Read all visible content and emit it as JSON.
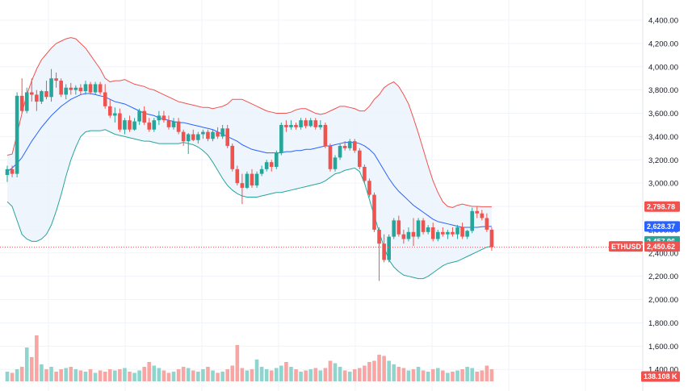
{
  "chart_data": {
    "type": "candlestick",
    "symbol": "ETHUSDT",
    "ylim": [
      1300,
      4500
    ],
    "yticks": [
      "4,400.00",
      "4,200.00",
      "4,000.00",
      "3,800.00",
      "3,600.00",
      "3,400.00",
      "3,200.00",
      "3,000.00",
      "2,800.00",
      "2,600.00",
      "2,400.00",
      "2,200.00",
      "2,000.00",
      "1,800.00",
      "1,600.00",
      "1,400.00"
    ],
    "ytick_values": [
      4400,
      4200,
      4000,
      3800,
      3600,
      3400,
      3200,
      3000,
      2800,
      2600,
      2400,
      2200,
      2000,
      1800,
      1600,
      1400
    ],
    "candles": [
      [
        3070,
        3150,
        3010,
        3120
      ],
      [
        3120,
        3150,
        3050,
        3080
      ],
      [
        3080,
        3780,
        3050,
        3750
      ],
      [
        3750,
        3900,
        3600,
        3620
      ],
      [
        3620,
        3820,
        3600,
        3780
      ],
      [
        3780,
        3900,
        3700,
        3760
      ],
      [
        3760,
        3800,
        3620,
        3700
      ],
      [
        3700,
        3800,
        3680,
        3790
      ],
      [
        3790,
        3880,
        3720,
        3740
      ],
      [
        3740,
        3980,
        3700,
        3900
      ],
      [
        3900,
        3950,
        3820,
        3880
      ],
      [
        3880,
        3900,
        3740,
        3760
      ],
      [
        3760,
        3850,
        3720,
        3820
      ],
      [
        3820,
        3860,
        3760,
        3800
      ],
      [
        3800,
        3840,
        3760,
        3820
      ],
      [
        3820,
        3850,
        3760,
        3790
      ],
      [
        3790,
        3880,
        3760,
        3850
      ],
      [
        3850,
        3870,
        3760,
        3780
      ],
      [
        3780,
        3870,
        3760,
        3850
      ],
      [
        3850,
        3870,
        3760,
        3780
      ],
      [
        3780,
        3850,
        3640,
        3660
      ],
      [
        3660,
        3720,
        3560,
        3580
      ],
      [
        3580,
        3650,
        3520,
        3600
      ],
      [
        3600,
        3640,
        3440,
        3460
      ],
      [
        3460,
        3560,
        3420,
        3540
      ],
      [
        3540,
        3580,
        3440,
        3460
      ],
      [
        3460,
        3560,
        3450,
        3530
      ],
      [
        3530,
        3640,
        3500,
        3620
      ],
      [
        3620,
        3660,
        3500,
        3520
      ],
      [
        3520,
        3560,
        3440,
        3460
      ],
      [
        3460,
        3560,
        3440,
        3540
      ],
      [
        3540,
        3620,
        3500,
        3580
      ],
      [
        3580,
        3620,
        3520,
        3540
      ],
      [
        3540,
        3580,
        3460,
        3480
      ],
      [
        3480,
        3560,
        3460,
        3530
      ],
      [
        3530,
        3560,
        3420,
        3440
      ],
      [
        3440,
        3460,
        3320,
        3360
      ],
      [
        3360,
        3430,
        3250,
        3420
      ],
      [
        3420,
        3460,
        3360,
        3370
      ],
      [
        3370,
        3440,
        3340,
        3420
      ],
      [
        3420,
        3460,
        3380,
        3440
      ],
      [
        3440,
        3460,
        3360,
        3380
      ],
      [
        3380,
        3460,
        3360,
        3440
      ],
      [
        3440,
        3480,
        3380,
        3400
      ],
      [
        3400,
        3500,
        3380,
        3470
      ],
      [
        3470,
        3500,
        3300,
        3320
      ],
      [
        3320,
        3340,
        3100,
        3120
      ],
      [
        3120,
        3150,
        2980,
        3000
      ],
      [
        3000,
        3080,
        2820,
        2960
      ],
      [
        2960,
        3100,
        2950,
        3080
      ],
      [
        3080,
        3120,
        2960,
        2980
      ],
      [
        2980,
        3100,
        2960,
        3080
      ],
      [
        3080,
        3150,
        3060,
        3120
      ],
      [
        3120,
        3200,
        3100,
        3180
      ],
      [
        3180,
        3200,
        3100,
        3140
      ],
      [
        3140,
        3280,
        3120,
        3260
      ],
      [
        3260,
        3520,
        3240,
        3500
      ],
      [
        3500,
        3540,
        3440,
        3480
      ],
      [
        3480,
        3540,
        3460,
        3500
      ],
      [
        3500,
        3520,
        3460,
        3480
      ],
      [
        3480,
        3560,
        3460,
        3540
      ],
      [
        3540,
        3560,
        3470,
        3490
      ],
      [
        3490,
        3560,
        3480,
        3540
      ],
      [
        3540,
        3560,
        3460,
        3480
      ],
      [
        3480,
        3540,
        3460,
        3500
      ],
      [
        3500,
        3520,
        3300,
        3320
      ],
      [
        3320,
        3340,
        3100,
        3120
      ],
      [
        3120,
        3240,
        3100,
        3220
      ],
      [
        3220,
        3340,
        3200,
        3320
      ],
      [
        3320,
        3360,
        3280,
        3300
      ],
      [
        3300,
        3380,
        3280,
        3360
      ],
      [
        3360,
        3380,
        3260,
        3280
      ],
      [
        3280,
        3300,
        3120,
        3140
      ],
      [
        3140,
        3160,
        3000,
        3020
      ],
      [
        3020,
        3040,
        2880,
        2900
      ],
      [
        2900,
        2920,
        2580,
        2600
      ],
      [
        2600,
        2620,
        2160,
        2480
      ],
      [
        2480,
        2560,
        2320,
        2340
      ],
      [
        2340,
        2560,
        2320,
        2540
      ],
      [
        2540,
        2700,
        2520,
        2680
      ],
      [
        2680,
        2720,
        2540,
        2560
      ],
      [
        2560,
        2600,
        2480,
        2520
      ],
      [
        2520,
        2620,
        2500,
        2580
      ],
      [
        2580,
        2700,
        2460,
        2540
      ],
      [
        2540,
        2700,
        2520,
        2680
      ],
      [
        2680,
        2700,
        2560,
        2580
      ],
      [
        2580,
        2640,
        2560,
        2620
      ],
      [
        2620,
        2660,
        2500,
        2520
      ],
      [
        2520,
        2600,
        2500,
        2580
      ],
      [
        2580,
        2620,
        2540,
        2560
      ],
      [
        2560,
        2600,
        2520,
        2580
      ],
      [
        2580,
        2620,
        2540,
        2560
      ],
      [
        2560,
        2640,
        2520,
        2620
      ],
      [
        2620,
        2660,
        2520,
        2540
      ],
      [
        2540,
        2600,
        2520,
        2590
      ],
      [
        2590,
        2790,
        2570,
        2760
      ],
      [
        2760,
        2800,
        2700,
        2740
      ],
      [
        2740,
        2770,
        2680,
        2700
      ],
      [
        2700,
        2740,
        2580,
        2600
      ],
      [
        2600,
        2620,
        2420,
        2450
      ]
    ],
    "volume": [
      1380,
      1370,
      1400,
      1420,
      1580,
      1500,
      1680,
      1440,
      1400,
      1420,
      1380,
      1400,
      1410,
      1420,
      1400,
      1390,
      1380,
      1400,
      1370,
      1390,
      1380,
      1400,
      1390,
      1400,
      1410,
      1380,
      1370,
      1390,
      1420,
      1460,
      1430,
      1410,
      1390,
      1370,
      1380,
      1400,
      1420,
      1410,
      1390,
      1380,
      1400,
      1420,
      1390,
      1370,
      1380,
      1400,
      1430,
      1600,
      1410,
      1390,
      1400,
      1480,
      1420,
      1400,
      1390,
      1410,
      1430,
      1460,
      1420,
      1400,
      1380,
      1390,
      1400,
      1410,
      1390,
      1410,
      1470,
      1450,
      1420,
      1390,
      1380,
      1400,
      1410,
      1430,
      1460,
      1470,
      1520,
      1510,
      1470,
      1440,
      1420,
      1410,
      1390,
      1400,
      1420,
      1390,
      1380,
      1400,
      1410,
      1390,
      1370,
      1380,
      1390,
      1400,
      1420,
      1410,
      1380,
      1390,
      1430,
      1400
    ],
    "bollinger": {
      "upper": [
        3240,
        3250,
        3420,
        3600,
        3760,
        3880,
        3980,
        4060,
        4110,
        4160,
        4200,
        4220,
        4240,
        4250,
        4240,
        4200,
        4160,
        4100,
        4040,
        3980,
        3900,
        3870,
        3880,
        3880,
        3890,
        3870,
        3850,
        3840,
        3830,
        3810,
        3800,
        3780,
        3760,
        3740,
        3720,
        3700,
        3690,
        3680,
        3670,
        3660,
        3650,
        3650,
        3640,
        3650,
        3660,
        3680,
        3720,
        3720,
        3720,
        3700,
        3680,
        3660,
        3640,
        3620,
        3610,
        3600,
        3600,
        3600,
        3610,
        3630,
        3640,
        3640,
        3620,
        3600,
        3590,
        3600,
        3620,
        3640,
        3660,
        3660,
        3650,
        3640,
        3620,
        3620,
        3660,
        3720,
        3760,
        3820,
        3850,
        3870,
        3830,
        3760,
        3680,
        3560,
        3430,
        3290,
        3150,
        3020,
        2920,
        2840,
        2800,
        2790,
        2810,
        2820,
        2810,
        2800,
        2800,
        2798,
        2798,
        2798
      ],
      "middle": [
        3100,
        3130,
        3170,
        3220,
        3290,
        3360,
        3420,
        3480,
        3530,
        3580,
        3620,
        3660,
        3690,
        3720,
        3740,
        3760,
        3770,
        3770,
        3760,
        3750,
        3740,
        3720,
        3700,
        3690,
        3680,
        3660,
        3640,
        3620,
        3600,
        3590,
        3580,
        3560,
        3550,
        3540,
        3530,
        3520,
        3520,
        3510,
        3500,
        3490,
        3480,
        3470,
        3460,
        3440,
        3420,
        3400,
        3380,
        3360,
        3330,
        3310,
        3290,
        3280,
        3270,
        3260,
        3260,
        3260,
        3260,
        3270,
        3270,
        3280,
        3280,
        3290,
        3290,
        3300,
        3310,
        3320,
        3320,
        3330,
        3340,
        3350,
        3350,
        3350,
        3340,
        3320,
        3290,
        3250,
        3180,
        3110,
        3040,
        2980,
        2930,
        2890,
        2850,
        2810,
        2780,
        2750,
        2720,
        2690,
        2670,
        2660,
        2650,
        2640,
        2630,
        2620,
        2620,
        2620,
        2620,
        2625,
        2628,
        2628
      ],
      "lower": [
        2840,
        2800,
        2680,
        2560,
        2520,
        2500,
        2500,
        2520,
        2560,
        2640,
        2760,
        2900,
        3060,
        3200,
        3310,
        3400,
        3440,
        3450,
        3450,
        3450,
        3460,
        3440,
        3420,
        3410,
        3400,
        3390,
        3380,
        3370,
        3360,
        3360,
        3350,
        3340,
        3340,
        3340,
        3340,
        3340,
        3350,
        3340,
        3330,
        3310,
        3280,
        3240,
        3180,
        3110,
        3040,
        2980,
        2940,
        2910,
        2890,
        2880,
        2880,
        2880,
        2890,
        2900,
        2910,
        2920,
        2920,
        2930,
        2940,
        2950,
        2960,
        2970,
        2980,
        2990,
        3000,
        3020,
        3050,
        3080,
        3090,
        3110,
        3120,
        3130,
        3100,
        3000,
        2860,
        2720,
        2580,
        2450,
        2340,
        2280,
        2240,
        2210,
        2200,
        2190,
        2180,
        2180,
        2200,
        2230,
        2260,
        2290,
        2310,
        2320,
        2330,
        2350,
        2370,
        2390,
        2410,
        2430,
        2450,
        2458
      ]
    },
    "badges": {
      "upper": "2,798.78",
      "middle": "2,628.37",
      "lower": "2,457.96",
      "price_symbol": "ETHUSDT",
      "price": "2,450.62",
      "volume": "138.108 K"
    },
    "colors": {
      "up": "#26a69a",
      "down": "#ef5350",
      "upper_band": "#ef5350",
      "middle_band": "#2962ff",
      "lower_band": "#26a69a",
      "band_fill": "#eaf2fb",
      "volume_up": "#8fd4cd",
      "volume_down": "#f7a6a4",
      "price_line": "#ef5350"
    },
    "grid": true,
    "legend": "none"
  }
}
